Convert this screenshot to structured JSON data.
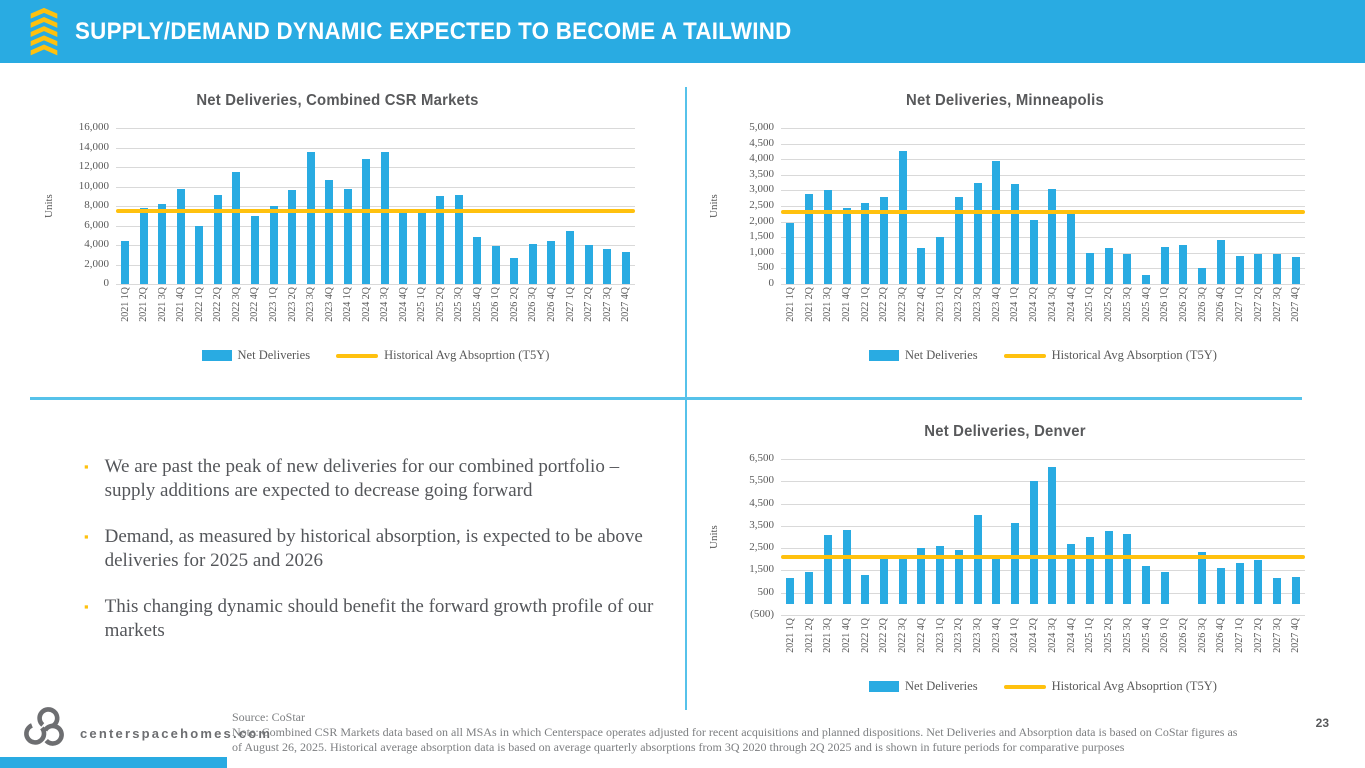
{
  "header": {
    "title": "SUPPLY/DEMAND DYNAMIC EXPECTED TO BECOME A TAILWIND"
  },
  "colors": {
    "accent_cyan": "#29ABE2",
    "accent_yellow": "#FFC10E",
    "bar_color": "#29ABE2",
    "divider_cyan": "#56C2EA",
    "text_dark": "#58595B"
  },
  "bullet_marker": "▪",
  "bullets": [
    "We are past the peak of new deliveries for our combined portfolio – supply additions are expected to decrease going forward",
    "Demand, as measured by historical absorption, is expected to be above deliveries for 2025 and 2026",
    "This changing dynamic should benefit the forward growth profile of our markets"
  ],
  "chart_data": [
    {
      "type": "bar",
      "title": "Net Deliveries, Combined CSR Markets",
      "ylabel": "Units",
      "ylim": [
        0,
        16000
      ],
      "ystep": 2000,
      "grid": true,
      "legend": [
        "Net Deliveries",
        "Historical Avg Absoprtion (T5Y)"
      ],
      "legend_position": "bottom",
      "avg_line": {
        "label": "Historical Avg Absoprtion (T5Y)",
        "value": 7500
      },
      "categories": [
        "2021 1Q",
        "2021 2Q",
        "2021 3Q",
        "2021 4Q",
        "2022 1Q",
        "2022 2Q",
        "2022 3Q",
        "2022 4Q",
        "2023 1Q",
        "2023 2Q",
        "2023 3Q",
        "2023 4Q",
        "2024 1Q",
        "2024 2Q",
        "2024 3Q",
        "2024 4Q",
        "2025 1Q",
        "2025 2Q",
        "2025 3Q",
        "2025 4Q",
        "2026 1Q",
        "2026 2Q",
        "2026 3Q",
        "2026 4Q",
        "2027 1Q",
        "2027 2Q",
        "2027 3Q",
        "2027 4Q"
      ],
      "values": [
        4400,
        7800,
        8200,
        9700,
        6000,
        9100,
        11500,
        7000,
        8000,
        9600,
        13500,
        10700,
        9700,
        12800,
        13500,
        7300,
        7300,
        9000,
        9100,
        4800,
        3900,
        2700,
        4100,
        4400,
        5400,
        4050,
        3550,
        3300
      ]
    },
    {
      "type": "bar",
      "title": "Net Deliveries, Minneapolis",
      "ylabel": "Units",
      "ylim": [
        0,
        5000
      ],
      "ystep": 500,
      "grid": true,
      "legend": [
        "Net Deliveries",
        "Historical Avg Absorption (T5Y)"
      ],
      "legend_position": "bottom",
      "avg_line": {
        "label": "Historical Avg Absorption (T5Y)",
        "value": 2300
      },
      "categories": [
        "2021 1Q",
        "2021 2Q",
        "2021 3Q",
        "2021 4Q",
        "2022 1Q",
        "2022 2Q",
        "2022 3Q",
        "2022 4Q",
        "2023 1Q",
        "2023 2Q",
        "2023 3Q",
        "2023 4Q",
        "2024 1Q",
        "2024 2Q",
        "2024 3Q",
        "2024 4Q",
        "2025 1Q",
        "2025 2Q",
        "2025 3Q",
        "2025 4Q",
        "2026 1Q",
        "2026 2Q",
        "2026 3Q",
        "2026 4Q",
        "2027 1Q",
        "2027 2Q",
        "2027 3Q",
        "2027 4Q"
      ],
      "values": [
        1950,
        2900,
        3000,
        2450,
        2600,
        2800,
        4250,
        1150,
        1500,
        2800,
        3250,
        3950,
        3200,
        2050,
        3050,
        2250,
        1000,
        1150,
        975,
        300,
        1200,
        1250,
        500,
        1400,
        900,
        975,
        950,
        850
      ]
    },
    {
      "type": "bar",
      "title": "Net Deliveries, Denver",
      "ylabel": "Units",
      "ylim": [
        -500,
        6500
      ],
      "ystep": 1000,
      "grid": true,
      "legend": [
        "Net Deliveries",
        "Historical Avg Absoprtion (T5Y)"
      ],
      "legend_position": "bottom",
      "avg_line": {
        "label": "Historical Avg Absoprtion (T5Y)",
        "value": 2100
      },
      "categories": [
        "2021 1Q",
        "2021 2Q",
        "2021 3Q",
        "2021 4Q",
        "2022 1Q",
        "2022 2Q",
        "2022 3Q",
        "2022 4Q",
        "2023 1Q",
        "2023 2Q",
        "2023 3Q",
        "2023 4Q",
        "2024 1Q",
        "2024 2Q",
        "2024 3Q",
        "2024 4Q",
        "2025 1Q",
        "2025 2Q",
        "2025 3Q",
        "2025 4Q",
        "2026 1Q",
        "2026 2Q",
        "2026 3Q",
        "2026 4Q",
        "2027 1Q",
        "2027 2Q",
        "2027 3Q",
        "2027 4Q"
      ],
      "values": [
        1150,
        1450,
        3100,
        3300,
        1300,
        2200,
        2050,
        2500,
        2600,
        2400,
        4000,
        2200,
        3650,
        5500,
        6150,
        2700,
        3000,
        3250,
        3150,
        1700,
        1450,
        0,
        2350,
        1600,
        1850,
        1950,
        1150,
        1200
      ]
    }
  ],
  "footer": {
    "website": "centerspacehomes.com",
    "source": "Source: CoStar",
    "note": "Note: Combined CSR Markets data based on all MSAs in which Centerspace operates adjusted for recent acquisitions and planned dispositions. Net Deliveries and Absorption data is based on CoStar figures as of August 26, 2025. Historical average absorption data is based on average quarterly absorptions from 3Q 2020 through 2Q 2025 and is shown in future periods for comparative purposes",
    "page_number": "23"
  }
}
